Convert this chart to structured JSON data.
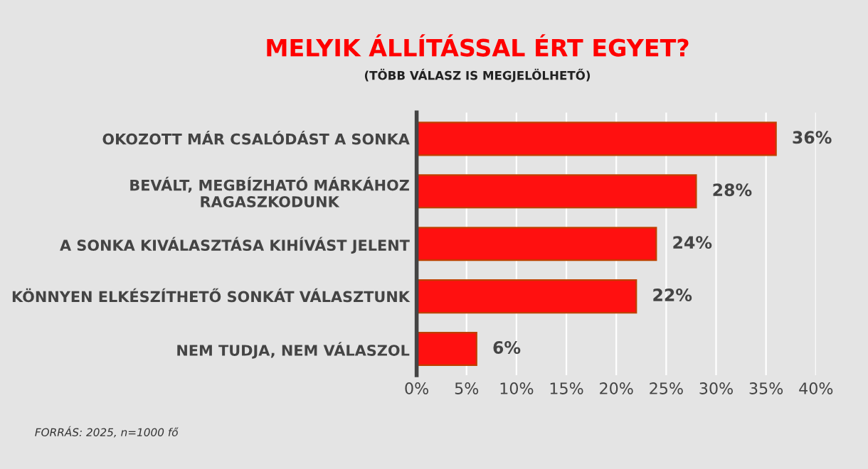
{
  "chart_data": {
    "type": "bar",
    "orientation": "horizontal",
    "title": "MELYIK ÁLLÍTÁSSAL ÉRT EGYET?",
    "subtitle": "(TÖBB VÁLASZ IS MEGJELÖLHETŐ)",
    "categories": [
      "OKOZOTT MÁR CSALÓDÁST A SONKA",
      "BEVÁLT, MEGBÍZHATÓ MÁRKÁHOZ\nRAGASZKODUNK",
      "A SONKA KIVÁLASZTÁSA KIHÍVÁST JELENT",
      "KÖNNYEN ELKÉSZÍTHETŐ SONKÁT VÁLASZTUNK",
      "NEM TUDJA, NEM VÁLASZOL"
    ],
    "values": [
      36,
      28,
      24,
      22,
      6
    ],
    "color": "#ff1010",
    "value_labels": [
      "36%",
      "28%",
      "24%",
      "22%",
      "6%"
    ],
    "xlim": [
      0,
      40
    ],
    "xticks": [
      {
        "value": 0,
        "label": "0%"
      },
      {
        "value": 5,
        "label": "5%"
      },
      {
        "value": 10,
        "label": "10%"
      },
      {
        "value": 15,
        "label": "15%"
      },
      {
        "value": 20,
        "label": "20%"
      },
      {
        "value": 25,
        "label": "25%"
      },
      {
        "value": 30,
        "label": "30%"
      },
      {
        "value": 35,
        "label": "35%"
      },
      {
        "value": 40,
        "label": "40%"
      }
    ],
    "grid": "x",
    "annotations": [
      "FORRÁS: 2025, n=1000 fő"
    ]
  }
}
